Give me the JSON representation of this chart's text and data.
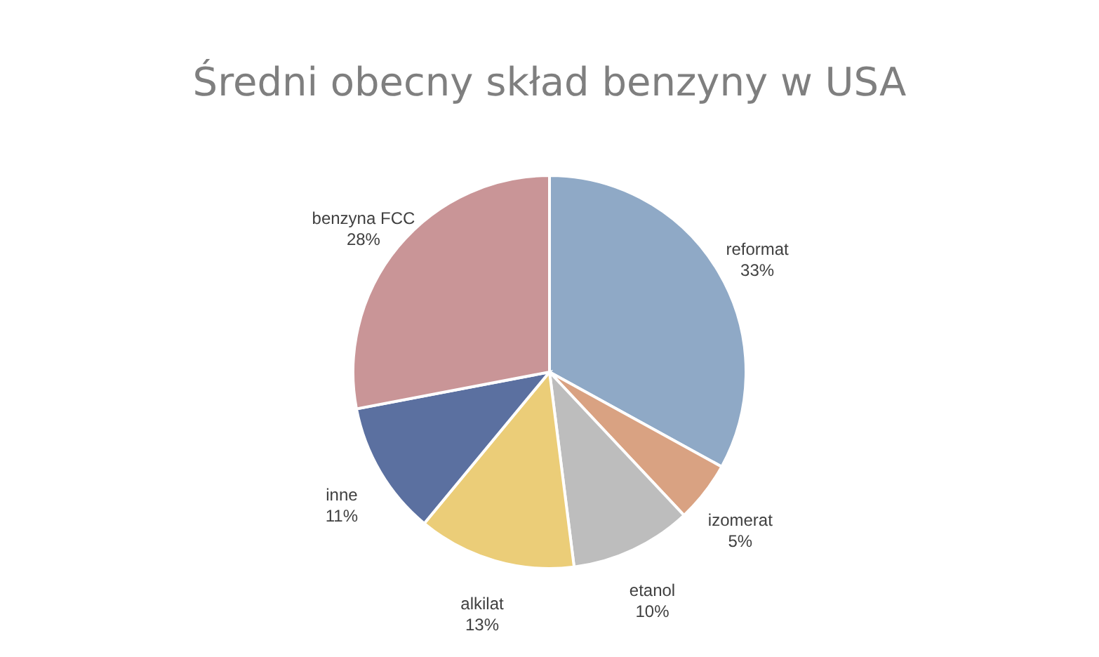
{
  "chart_data": {
    "type": "pie",
    "title": "Średni obecny skład benzyny w USA",
    "categories": [
      "reformat",
      "izomerat",
      "etanol",
      "alkilat",
      "inne",
      "benzyna FCC"
    ],
    "values": [
      33,
      5,
      10,
      13,
      11,
      28
    ],
    "value_labels": [
      "33%",
      "5%",
      "10%",
      "13%",
      "11%",
      "28%"
    ],
    "colors": [
      "#8fa9c6",
      "#d9a282",
      "#bdbdbd",
      "#ebcd78",
      "#5b70a0",
      "#c99597"
    ],
    "legend": false
  }
}
